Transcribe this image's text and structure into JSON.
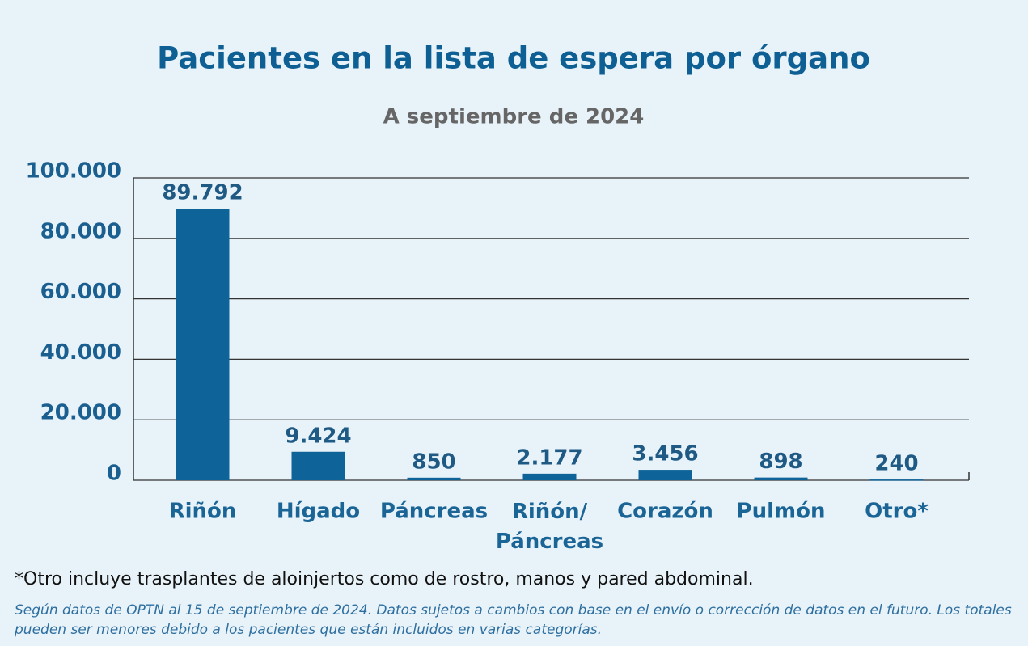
{
  "chart_data": {
    "type": "bar",
    "title": "Pacientes en la lista de espera por órgano",
    "subtitle": "A septiembre de 2024",
    "categories": [
      "Riñón",
      "Hígado",
      "Páncreas",
      "Riñón/\nPáncreas",
      "Corazón",
      "Pulmón",
      "Otro*"
    ],
    "values": [
      89792,
      9424,
      850,
      2177,
      3456,
      898,
      240
    ],
    "value_labels": [
      "89.792",
      "9.424",
      "850",
      "2.177",
      "3.456",
      "898",
      "240"
    ],
    "color": "#0e6399",
    "ylim": [
      0,
      100000
    ],
    "yticks": [
      0,
      {
        "value": 20000,
        "label": "20.000"
      },
      {
        "value": 40000,
        "label": "40.000"
      },
      {
        "value": 60000,
        "label": "60.000"
      },
      {
        "value": 80000,
        "label": "80.000"
      },
      {
        "value": 100000,
        "label": "100.000"
      }
    ],
    "grid": true,
    "footnote": "*Otro incluye trasplantes de aloinjertos como de rostro, manos y pared abdominal.",
    "source": "Según datos de OPTN al 15 de septiembre de 2024. Datos sujetos a cambios con base en el envío o corrección de datos en el futuro. Los totales pueden ser menores debido a los pacientes que están incluidos en varias categorías."
  }
}
